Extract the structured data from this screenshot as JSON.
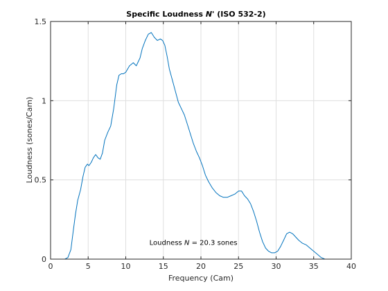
{
  "chart_data": {
    "type": "line",
    "title_parts": [
      "Specific Loudness ",
      "N'",
      "  (ISO 532-2)"
    ],
    "xlabel": "Frequency (Cam)",
    "ylabel": "Loudness (sones/Cam)",
    "xlim": [
      0,
      40
    ],
    "ylim": [
      0,
      1.5
    ],
    "x_ticks": [
      0,
      5,
      10,
      15,
      20,
      25,
      30,
      35,
      40
    ],
    "y_ticks": [
      0,
      0.5,
      1,
      1.5
    ],
    "x_tick_labels": [
      "0",
      "5",
      "10",
      "15",
      "20",
      "25",
      "30",
      "35",
      "40"
    ],
    "y_tick_labels": [
      "0",
      "0.5",
      "1",
      "1.5"
    ],
    "grid": true,
    "annotation_parts": [
      "Loudness ",
      "N",
      " = 20.3 sones"
    ],
    "annotation_position": [
      19,
      0.09
    ],
    "line_color": "#0072bd",
    "series": [
      {
        "x": [
          1.9,
          2.3,
          2.7,
          3.0,
          3.3,
          3.6,
          4.0,
          4.3,
          4.6,
          4.9,
          5.1,
          5.4,
          5.7,
          6.0,
          6.3,
          6.6,
          6.9,
          7.2,
          7.6,
          8.0,
          8.4,
          8.8,
          9.1,
          9.4,
          9.7,
          10.0,
          10.5,
          11.0,
          11.4,
          11.9,
          12.2,
          12.6,
          13.0,
          13.4,
          13.8,
          14.2,
          14.6,
          14.9,
          15.2,
          15.5,
          15.8,
          16.2,
          16.6,
          17.0,
          17.4,
          17.8,
          18.2,
          18.6,
          19.0,
          19.4,
          19.8,
          20.2,
          20.6,
          21.0,
          21.5,
          22.0,
          22.5,
          23.0,
          23.5,
          24.0,
          24.5,
          25.0,
          25.4,
          25.8,
          26.2,
          26.6,
          27.0,
          27.4,
          27.8,
          28.2,
          28.6,
          29.0,
          29.4,
          29.8,
          30.2,
          30.6,
          31.0,
          31.4,
          31.8,
          32.2,
          32.6,
          33.0,
          33.5,
          34.0,
          34.5,
          35.0,
          35.5,
          36.0,
          36.5,
          37.0,
          37.5,
          38.0,
          38.5,
          39.0
        ],
        "y": [
          0.0,
          0.01,
          0.06,
          0.17,
          0.28,
          0.37,
          0.44,
          0.52,
          0.58,
          0.6,
          0.59,
          0.61,
          0.64,
          0.66,
          0.64,
          0.63,
          0.67,
          0.75,
          0.8,
          0.84,
          0.95,
          1.1,
          1.16,
          1.17,
          1.17,
          1.18,
          1.22,
          1.24,
          1.22,
          1.27,
          1.33,
          1.38,
          1.42,
          1.43,
          1.4,
          1.38,
          1.39,
          1.38,
          1.35,
          1.28,
          1.2,
          1.13,
          1.06,
          0.99,
          0.95,
          0.91,
          0.85,
          0.79,
          0.73,
          0.68,
          0.64,
          0.59,
          0.53,
          0.49,
          0.45,
          0.42,
          0.4,
          0.39,
          0.39,
          0.4,
          0.41,
          0.43,
          0.43,
          0.4,
          0.38,
          0.35,
          0.3,
          0.24,
          0.17,
          0.11,
          0.07,
          0.05,
          0.04,
          0.04,
          0.05,
          0.08,
          0.12,
          0.16,
          0.17,
          0.16,
          0.14,
          0.12,
          0.1,
          0.09,
          0.07,
          0.05,
          0.03,
          0.01,
          0.0,
          0.0,
          0.0,
          0.0,
          0.0,
          0.0
        ]
      }
    ]
  }
}
